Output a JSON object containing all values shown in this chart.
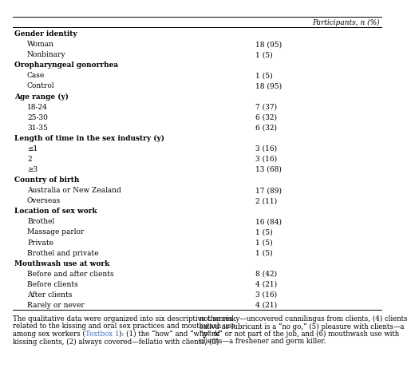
{
  "header": "Participants, n (%)",
  "rows": [
    {
      "label": "Gender identity",
      "value": "",
      "bold": true,
      "indent": 0
    },
    {
      "label": "Woman",
      "value": "18 (95)",
      "bold": false,
      "indent": 1
    },
    {
      "label": "Nonbinary",
      "value": "1 (5)",
      "bold": false,
      "indent": 1
    },
    {
      "label": "Oropharyngeal gonorrhea",
      "value": "",
      "bold": true,
      "indent": 0
    },
    {
      "label": "Case",
      "value": "1 (5)",
      "bold": false,
      "indent": 1
    },
    {
      "label": "Control",
      "value": "18 (95)",
      "bold": false,
      "indent": 1
    },
    {
      "label": "Age range (y)",
      "value": "",
      "bold": true,
      "indent": 0
    },
    {
      "label": "18-24",
      "value": "7 (37)",
      "bold": false,
      "indent": 1
    },
    {
      "label": "25-30",
      "value": "6 (32)",
      "bold": false,
      "indent": 1
    },
    {
      "label": "31-35",
      "value": "6 (32)",
      "bold": false,
      "indent": 1
    },
    {
      "label": "Length of time in the sex industry (y)",
      "value": "",
      "bold": true,
      "indent": 0
    },
    {
      "label": "≤1",
      "value": "3 (16)",
      "bold": false,
      "indent": 1
    },
    {
      "label": "2",
      "value": "3 (16)",
      "bold": false,
      "indent": 1
    },
    {
      "label": "≥3",
      "value": "13 (68)",
      "bold": false,
      "indent": 1
    },
    {
      "label": "Country of birth",
      "value": "",
      "bold": true,
      "indent": 0
    },
    {
      "label": "Australia or New Zealand",
      "value": "17 (89)",
      "bold": false,
      "indent": 1
    },
    {
      "label": "Overseas",
      "value": "2 (11)",
      "bold": false,
      "indent": 1
    },
    {
      "label": "Location of sex work",
      "value": "",
      "bold": true,
      "indent": 0
    },
    {
      "label": "Brothel",
      "value": "16 (84)",
      "bold": false,
      "indent": 1
    },
    {
      "label": "Massage parlor",
      "value": "1 (5)",
      "bold": false,
      "indent": 1
    },
    {
      "label": "Private",
      "value": "1 (5)",
      "bold": false,
      "indent": 1
    },
    {
      "label": "Brothel and private",
      "value": "1 (5)",
      "bold": false,
      "indent": 1
    },
    {
      "label": "Mouthwash use at work",
      "value": "",
      "bold": true,
      "indent": 0
    },
    {
      "label": "Before and after clients",
      "value": "8 (42)",
      "bold": false,
      "indent": 1
    },
    {
      "label": "Before clients",
      "value": "4 (21)",
      "bold": false,
      "indent": 1
    },
    {
      "label": "After clients",
      "value": "3 (16)",
      "bold": false,
      "indent": 1
    },
    {
      "label": "Rarely or never",
      "value": "4 (21)",
      "bold": false,
      "indent": 1
    }
  ],
  "footer_left": "The qualitative data were organized into six descriptive themes\nrelated to the kissing and oral sex practices and mouthwash use\namong sex workers (Textbox 1): (1) the “how” and “why” of\nkissing clients, (2) always covered—fellatio with clients, (3)",
  "footer_right": "not so risky—uncovered cunnilingus from clients, (4) clients\nsaliva as lubricant is a “no go,” (5) pleasure with clients—a\n“perk” or not part of the job, and (6) mouthwash use with\nclients—a freshener and germ killer.",
  "textbox_color": "#4472C4",
  "bg_color": "#ffffff",
  "text_color": "#000000",
  "font_size": 6.5,
  "header_font_size": 6.5,
  "footer_font_size": 6.2
}
